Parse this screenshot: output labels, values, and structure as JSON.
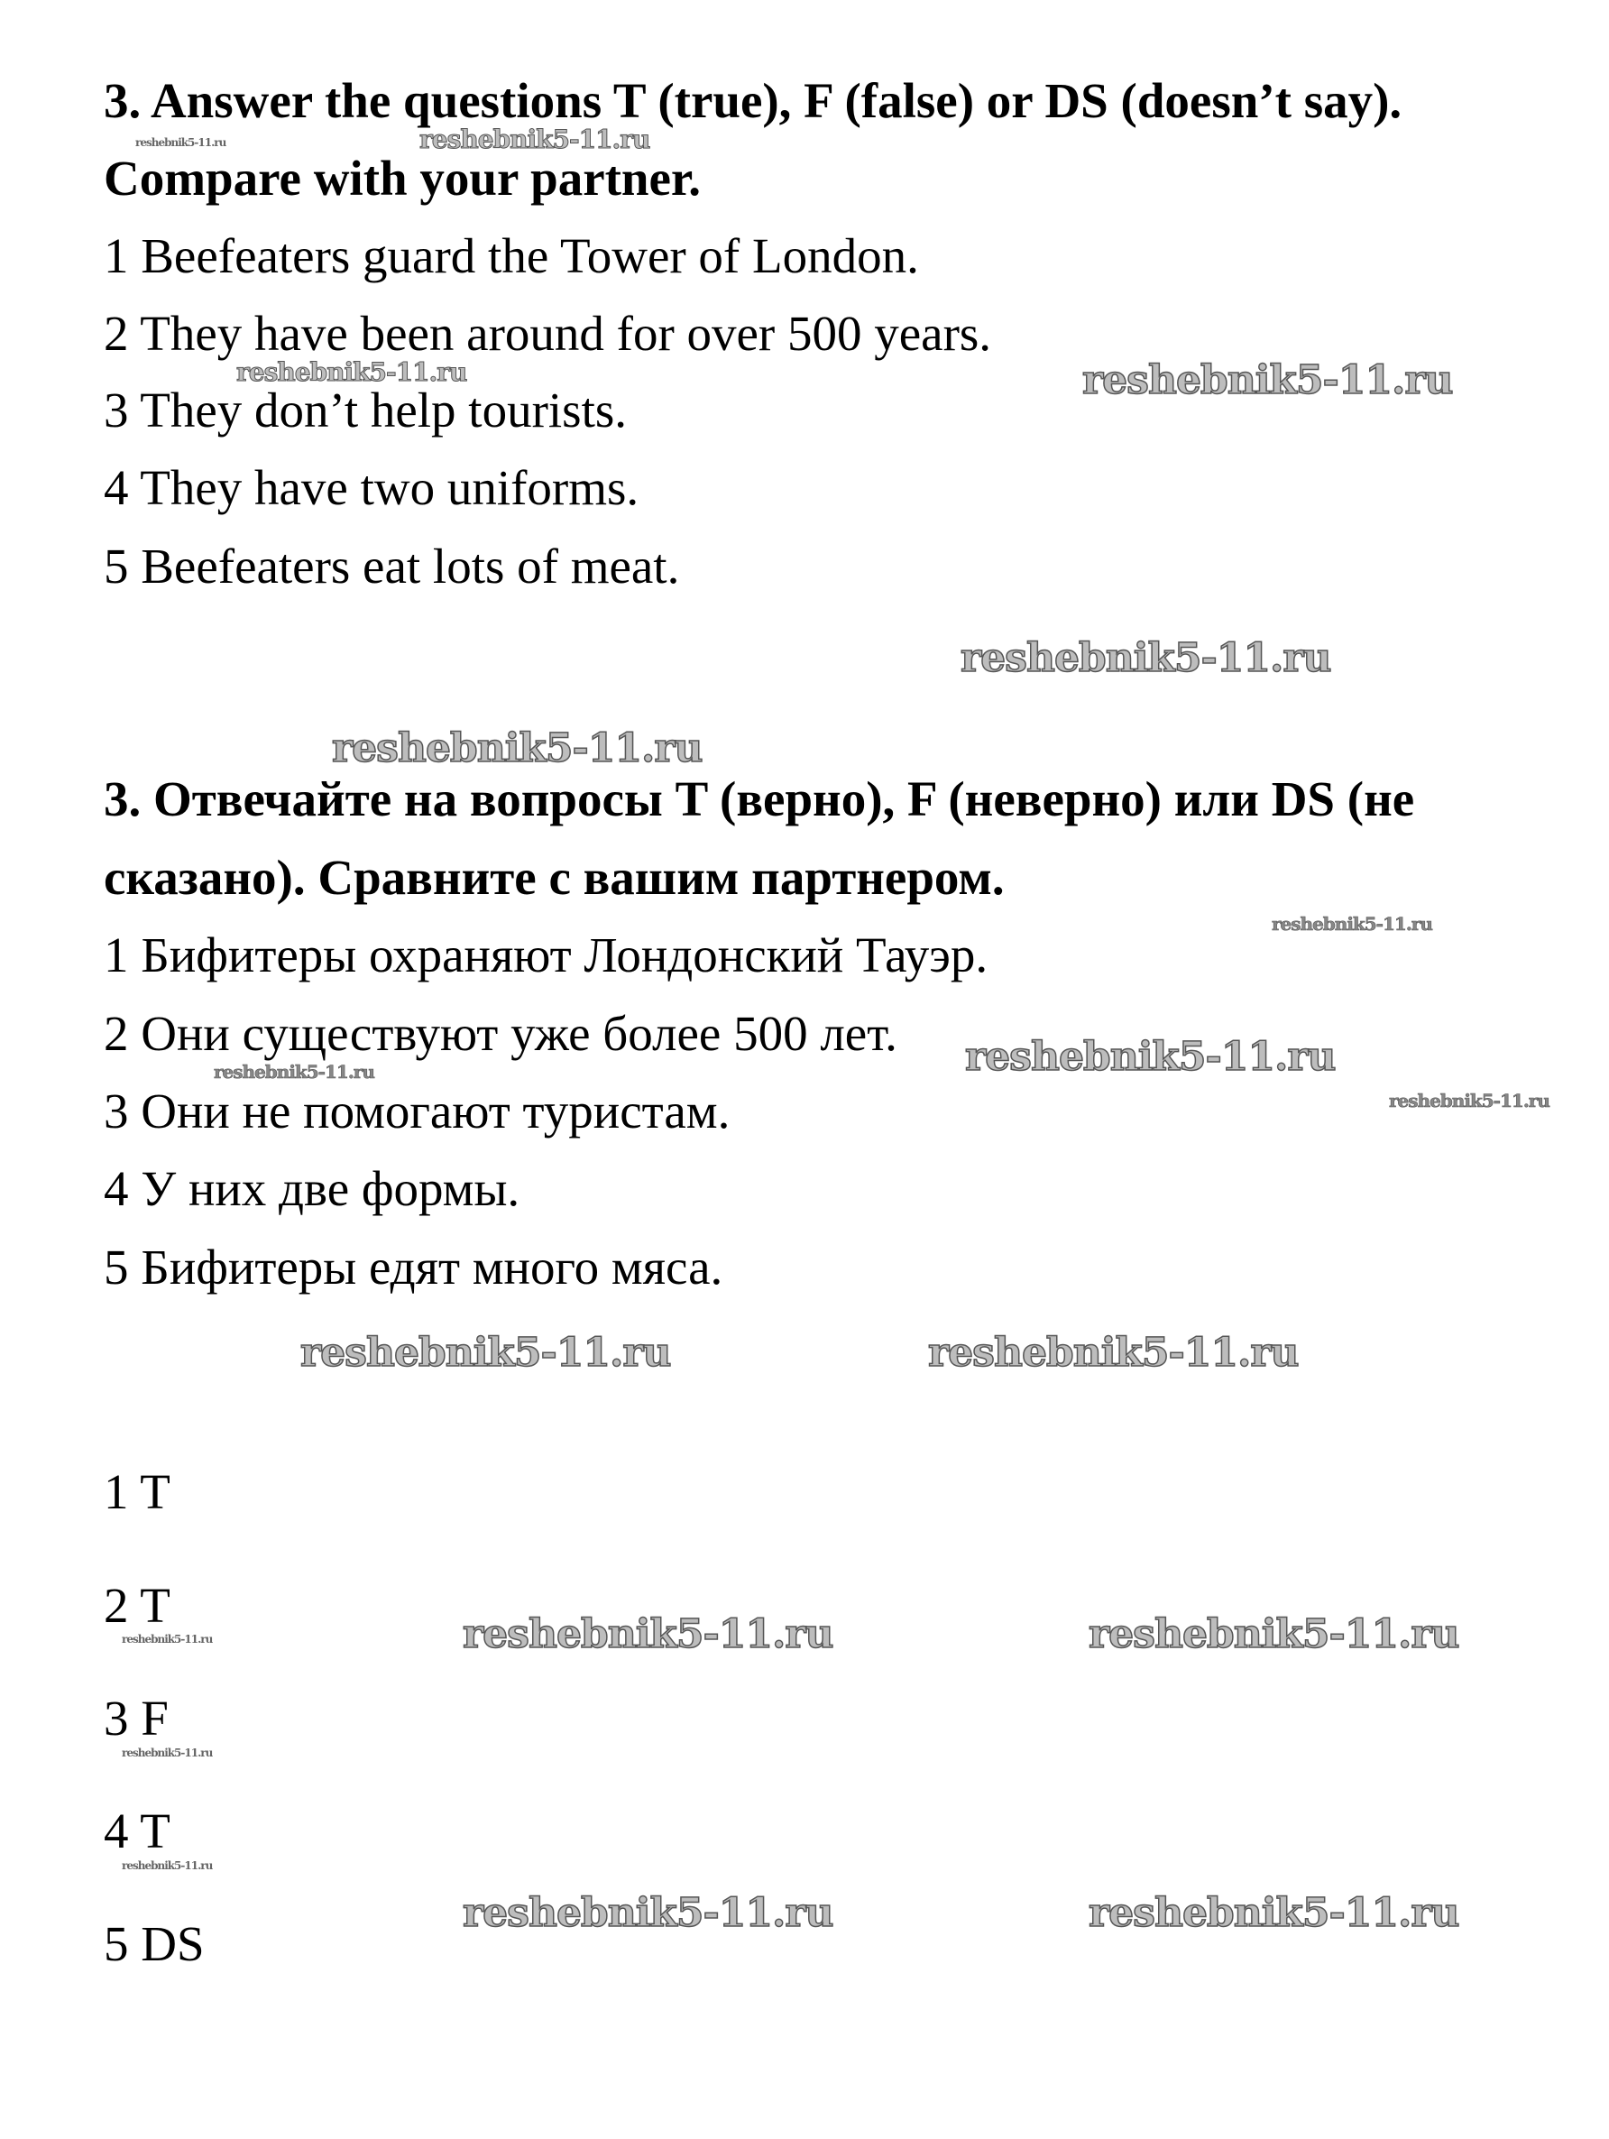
{
  "english": {
    "heading_line1": "3. Answer the questions T (true), F (false) or DS (doesn’t say).",
    "heading_line2": "Compare with your partner.",
    "items": [
      "1 Beefeaters guard the Tower of London.",
      "2 They have been around for over 500 years.",
      "3 They don’t help tourists.",
      "4 They have two uniforms.",
      "5 Beefeaters eat lots of meat."
    ]
  },
  "russian": {
    "heading_line1": "3. Отвечайте на вопросы T (верно), F (неверно) или DS (не",
    "heading_line2": "сказано). Сравните с вашим партнером.",
    "items": [
      "1 Бифитеры охраняют Лондонский Тауэр.",
      "2 Они существуют уже более 500 лет.",
      "3 Они не помогают туристам.",
      "4 У них две формы.",
      "5 Бифитеры едят много мяса."
    ]
  },
  "answers": [
    "1 T",
    "2 T",
    "3 F",
    "4 T",
    "5 DS"
  ],
  "watermark": "reshebnik5-11.ru"
}
